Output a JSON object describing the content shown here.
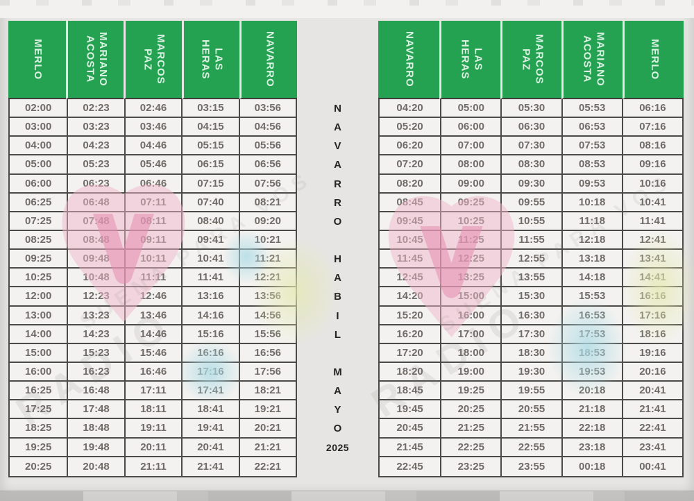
{
  "colors": {
    "header_green": "#25a251",
    "header_text": "#d9f2e2",
    "cell_text": "#6f6b67",
    "grid_border": "#4c4a47",
    "background": "#e6e5e3",
    "watermark_pink": "#eba9c3"
  },
  "left_table": {
    "headers": [
      "MERLO",
      "MARIANO ACOSTA",
      "MARCOS PAZ",
      "LAS HERAS",
      "NAVARRO"
    ],
    "rows": [
      [
        "02:00",
        "02:23",
        "02:46",
        "03:15",
        "03:56"
      ],
      [
        "03:00",
        "03:23",
        "03:46",
        "04:15",
        "04:56"
      ],
      [
        "04:00",
        "04:23",
        "04:46",
        "05:15",
        "05:56"
      ],
      [
        "05:00",
        "05:23",
        "05:46",
        "06:15",
        "06:56"
      ],
      [
        "06:00",
        "06:23",
        "06:46",
        "07:15",
        "07:56"
      ],
      [
        "06:25",
        "06:48",
        "07:11",
        "07:40",
        "08:21"
      ],
      [
        "07:25",
        "07:48",
        "08:11",
        "08:40",
        "09:20"
      ],
      [
        "08:25",
        "08:48",
        "09:11",
        "09:41",
        "10:21"
      ],
      [
        "09:25",
        "09:48",
        "10:11",
        "10:41",
        "11:21"
      ],
      [
        "10:25",
        "10:48",
        "11:11",
        "11:41",
        "12:21"
      ],
      [
        "12:00",
        "12:23",
        "12:46",
        "13:16",
        "13:56"
      ],
      [
        "13:00",
        "13:23",
        "13:46",
        "14:16",
        "14:56"
      ],
      [
        "14:00",
        "14:23",
        "14:46",
        "15:16",
        "15:56"
      ],
      [
        "15:00",
        "15:23",
        "15:46",
        "16:16",
        "16:56"
      ],
      [
        "16:00",
        "16:23",
        "16:46",
        "17:16",
        "17:56"
      ],
      [
        "16:25",
        "16:48",
        "17:11",
        "17:41",
        "18:21"
      ],
      [
        "17:25",
        "17:48",
        "18:11",
        "18:41",
        "19:21"
      ],
      [
        "18:25",
        "18:48",
        "19:11",
        "19:41",
        "20:21"
      ],
      [
        "19:25",
        "19:48",
        "20:11",
        "20:41",
        "21:21"
      ],
      [
        "20:25",
        "20:48",
        "21:11",
        "21:41",
        "22:21"
      ]
    ]
  },
  "right_table": {
    "headers": [
      "NAVARRO",
      "LAS HERAS",
      "MARCOS PAZ",
      "MARIANO ACOSTA",
      "MERLO"
    ],
    "rows": [
      [
        "04:20",
        "05:00",
        "05:30",
        "05:53",
        "06:16"
      ],
      [
        "05:20",
        "06:00",
        "06:30",
        "06:53",
        "07:16"
      ],
      [
        "06:20",
        "07:00",
        "07:30",
        "07:53",
        "08:16"
      ],
      [
        "07:20",
        "08:00",
        "08:30",
        "08:53",
        "09:16"
      ],
      [
        "08:20",
        "09:00",
        "09:30",
        "09:53",
        "10:16"
      ],
      [
        "08:45",
        "09:25",
        "09:55",
        "10:18",
        "10:41"
      ],
      [
        "09:45",
        "10:25",
        "10:55",
        "11:18",
        "11:41"
      ],
      [
        "10:45",
        "11:25",
        "11:55",
        "12:18",
        "12:41"
      ],
      [
        "11:45",
        "12:25",
        "12:55",
        "13:18",
        "13:41"
      ],
      [
        "12:45",
        "13:25",
        "13:55",
        "14:18",
        "14:41"
      ],
      [
        "14:20",
        "15:00",
        "15:30",
        "15:53",
        "16:16"
      ],
      [
        "15:20",
        "16:00",
        "16:30",
        "16:53",
        "17:16"
      ],
      [
        "16:20",
        "17:00",
        "17:30",
        "17:53",
        "18:16"
      ],
      [
        "17:20",
        "18:00",
        "18:30",
        "18:53",
        "19:16"
      ],
      [
        "18:20",
        "19:00",
        "19:30",
        "19:53",
        "20:16"
      ],
      [
        "18:45",
        "19:25",
        "19:55",
        "20:18",
        "20:41"
      ],
      [
        "19:45",
        "20:25",
        "20:55",
        "21:18",
        "21:41"
      ],
      [
        "20:45",
        "21:25",
        "21:55",
        "22:18",
        "22:41"
      ],
      [
        "21:45",
        "22:25",
        "22:55",
        "23:18",
        "23:41"
      ],
      [
        "22:45",
        "23:25",
        "23:55",
        "00:18",
        "00:41"
      ]
    ]
  },
  "center_column": {
    "reading": "NAVARRO HABIL MAYO 2025",
    "letters": [
      "N",
      "A",
      "V",
      "A",
      "R",
      "R",
      "O",
      "",
      "H",
      "A",
      "B",
      "I",
      "L",
      "",
      "M",
      "A",
      "Y",
      "O",
      "2025",
      ""
    ]
  },
  "watermark": {
    "primary": "RADIO",
    "secondary": "SUENA PARA VOS"
  }
}
